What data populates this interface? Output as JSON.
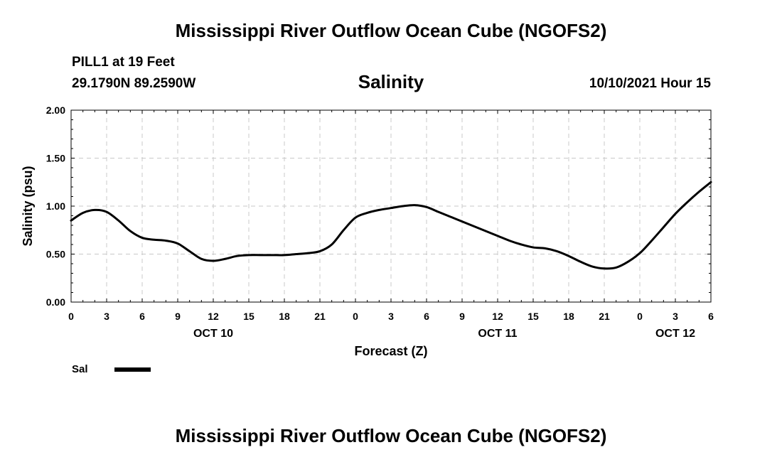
{
  "header": {
    "title": "Mississippi River Outflow Ocean Cube (NGOFS2)",
    "station": "PILL1 at 19 Feet",
    "coordinates": "29.1790N  89.2590W",
    "chart_title": "Salinity",
    "run_time": "10/10/2021 Hour 15"
  },
  "footer": {
    "title": "Mississippi River Outflow Ocean Cube (NGOFS2)"
  },
  "legend": {
    "entries": [
      {
        "label": "Sal",
        "color": "#000000"
      }
    ]
  },
  "chart_data": {
    "type": "line",
    "title": "Salinity",
    "xlabel": "Forecast (Z)",
    "ylabel": "Salinity (psu)",
    "xlim": [
      0,
      54
    ],
    "ylim": [
      0,
      2
    ],
    "grid": true,
    "y_ticks": [
      "0.00",
      "0.50",
      "1.00",
      "1.50",
      "2.00"
    ],
    "x_tick_labels": [
      "0",
      "3",
      "6",
      "9",
      "12",
      "15",
      "18",
      "21",
      "0",
      "3",
      "6",
      "9",
      "12",
      "15",
      "18",
      "21",
      "0",
      "3",
      "6"
    ],
    "date_labels": [
      {
        "label": "OCT 10",
        "hour": 12
      },
      {
        "label": "OCT 11",
        "hour": 36
      },
      {
        "label": "OCT 12",
        "hour": 51
      }
    ],
    "series": [
      {
        "name": "Sal",
        "color": "#000000",
        "x": [
          0,
          1,
          2,
          3,
          4,
          5,
          6,
          7,
          8,
          9,
          10,
          11,
          12,
          13,
          14,
          15,
          16,
          17,
          18,
          19,
          20,
          21,
          22,
          23,
          24,
          25,
          26,
          27,
          28,
          29,
          30,
          31,
          32,
          33,
          34,
          35,
          36,
          37,
          38,
          39,
          40,
          41,
          42,
          43,
          44,
          45,
          46,
          47,
          48,
          49,
          50,
          51,
          52,
          53,
          54
        ],
        "values": [
          0.85,
          0.93,
          0.96,
          0.94,
          0.85,
          0.74,
          0.67,
          0.65,
          0.64,
          0.61,
          0.53,
          0.45,
          0.43,
          0.45,
          0.48,
          0.49,
          0.49,
          0.49,
          0.49,
          0.5,
          0.51,
          0.53,
          0.6,
          0.75,
          0.88,
          0.93,
          0.96,
          0.98,
          1.0,
          1.01,
          0.99,
          0.94,
          0.89,
          0.84,
          0.79,
          0.74,
          0.69,
          0.64,
          0.6,
          0.57,
          0.56,
          0.53,
          0.48,
          0.42,
          0.37,
          0.35,
          0.36,
          0.42,
          0.51,
          0.64,
          0.78,
          0.92,
          1.04,
          1.15,
          1.25
        ]
      }
    ]
  }
}
